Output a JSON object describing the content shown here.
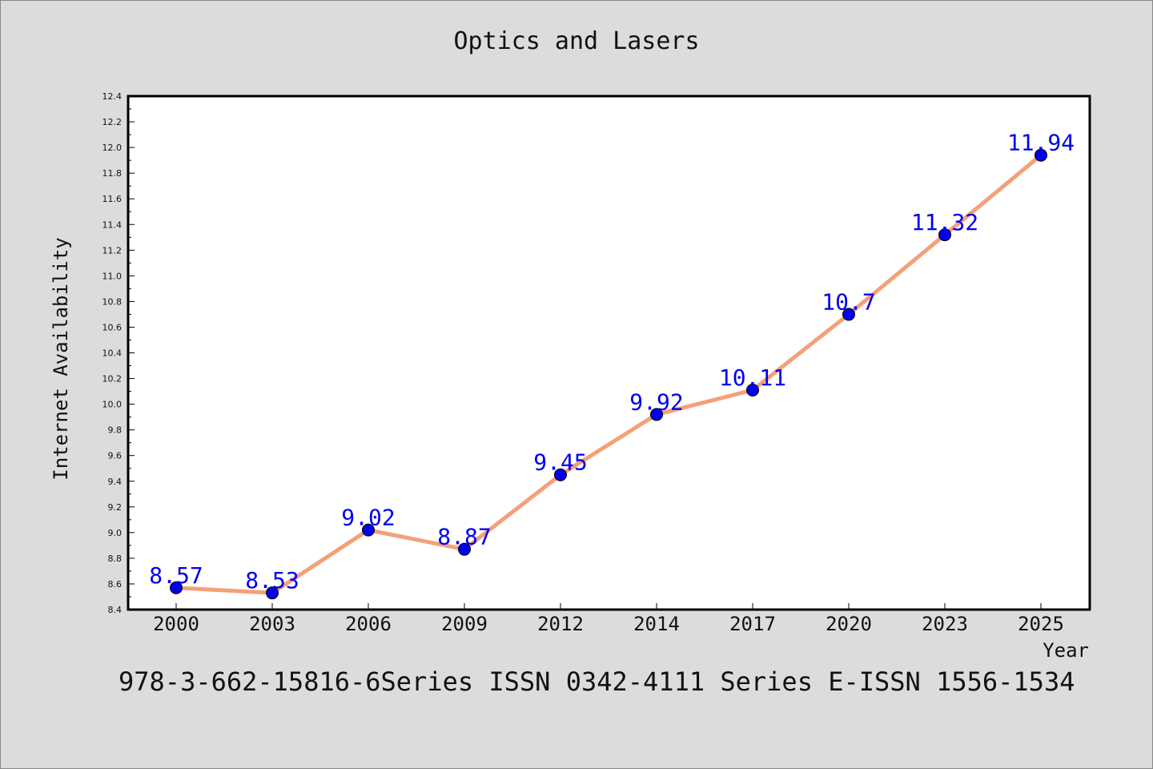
{
  "title": "Optics and Lasers",
  "footer": "978-3-662-15816-6Series ISSN 0342-4111 Series E-ISSN 1556-1534",
  "chart_data": {
    "type": "line",
    "title": "Optics and Lasers",
    "xlabel": "Year",
    "ylabel": "Internet Availability",
    "categories": [
      "2000",
      "2003",
      "2006",
      "2009",
      "2012",
      "2014",
      "2017",
      "2020",
      "2023",
      "2025"
    ],
    "series": [
      {
        "values": [
          8.57,
          8.53,
          9.02,
          8.87,
          9.45,
          9.92,
          10.11,
          10.7,
          11.32,
          11.94
        ],
        "labels": [
          "8.57",
          "8.53",
          "9.02",
          "8.87",
          "9.45",
          "9.92",
          "10.11",
          "10.7",
          "11.32",
          "11.94"
        ],
        "line_color": "#f4a07a",
        "marker_color": "#0000ee"
      }
    ],
    "ylim": [
      8.4,
      12.4
    ],
    "yticks": [
      "8.4",
      "8.6",
      "8.8",
      "9.0",
      "9.2",
      "9.4",
      "9.6",
      "9.8",
      "10.0",
      "10.2",
      "10.4",
      "10.6",
      "10.8",
      "11.0",
      "11.2",
      "11.4",
      "11.6",
      "11.8",
      "12.0",
      "12.2",
      "12.4"
    ],
    "grid": false,
    "legend": "none",
    "label_color": "#0000ee"
  }
}
